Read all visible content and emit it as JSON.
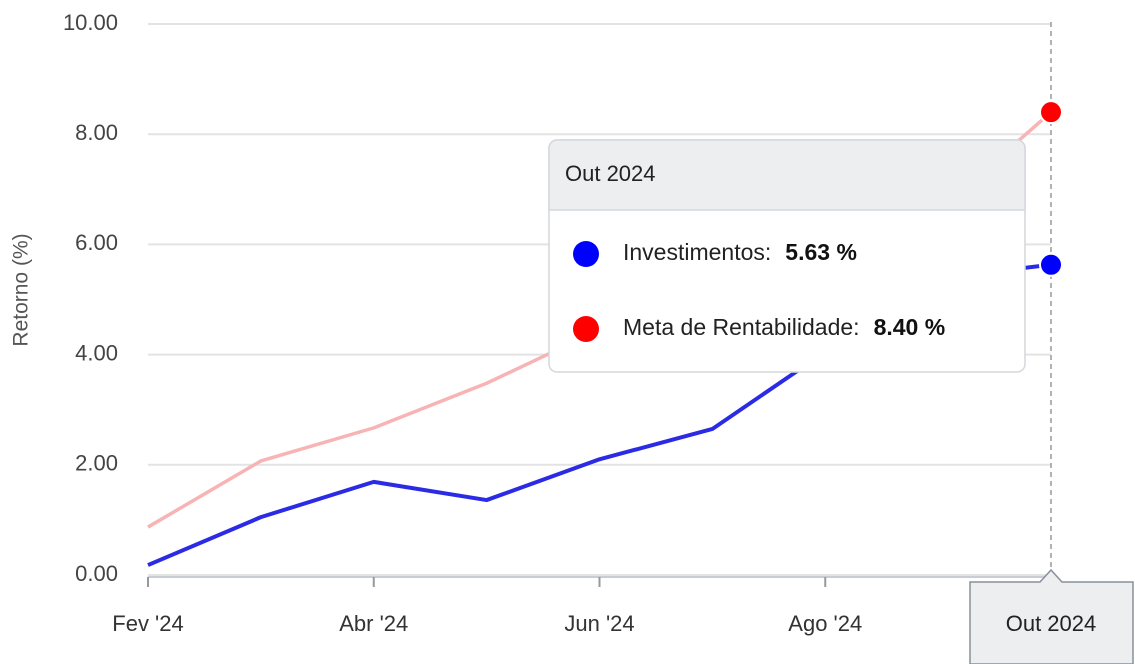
{
  "chart_data": {
    "type": "line",
    "y_label": "Retorno (%)",
    "categories": [
      "Fev '24",
      null,
      "Abr '24",
      null,
      "Jun '24",
      null,
      "Ago '24",
      null,
      "Out '24"
    ],
    "series": [
      {
        "name": "Investimentos",
        "color": "#2b2be6",
        "marker_color": "#0000ff",
        "values": [
          0.18,
          1.05,
          1.69,
          1.36,
          2.1,
          2.65,
          4.05,
          5.39,
          5.63
        ]
      },
      {
        "name": "Meta de Rentabilidade",
        "color": "#f8b4b4",
        "marker_color": "#ff0000",
        "values": [
          0.87,
          2.07,
          2.67,
          3.48,
          4.45,
          5.2,
          5.95,
          6.6,
          8.4
        ]
      }
    ],
    "ylim": [
      0,
      10
    ],
    "yticks": [
      {
        "value": 0,
        "label": "0.00"
      },
      {
        "value": 2,
        "label": "2.00"
      },
      {
        "value": 4,
        "label": "4.00"
      },
      {
        "value": 6,
        "label": "6.00"
      },
      {
        "value": 8,
        "label": "8.00"
      },
      {
        "value": 10,
        "label": "10.00"
      }
    ],
    "grid": true,
    "tooltip": {
      "title": "Out 2024",
      "items": [
        {
          "label": "Investimentos:",
          "value_label": "5.63 %"
        },
        {
          "label": "Meta de Rentabilidade:",
          "value_label": "8.40 %"
        }
      ]
    },
    "crosshair_label": "Out 2024"
  }
}
